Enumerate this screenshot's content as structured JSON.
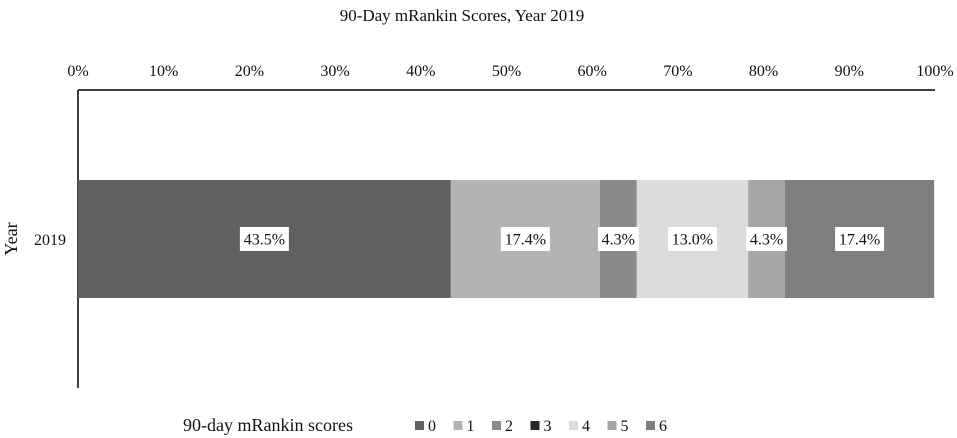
{
  "chart_data": {
    "type": "bar",
    "orientation": "horizontal",
    "stacked": "percent",
    "title": "90-Day mRankin Scores, Year 2019",
    "xlabel": "",
    "ylabel": "Year",
    "xlim": [
      0,
      100
    ],
    "x_ticks": [
      "0%",
      "10%",
      "20%",
      "30%",
      "40%",
      "50%",
      "60%",
      "70%",
      "80%",
      "90%",
      "100%"
    ],
    "x_axis_position": "top",
    "categories": [
      "2019"
    ],
    "grid": false,
    "legend_position": "bottom",
    "legend_title": "90-day mRankin scores",
    "series": [
      {
        "name": "0",
        "values": [
          43.5
        ],
        "label": "43.5%",
        "color": "#606060"
      },
      {
        "name": "1",
        "values": [
          17.4
        ],
        "label": "17.4%",
        "color": "#b3b3b3"
      },
      {
        "name": "2",
        "values": [
          4.3
        ],
        "label": "4.3%",
        "color": "#8a8a8a"
      },
      {
        "name": "3",
        "values": [
          0
        ],
        "label": "",
        "color": "#262626"
      },
      {
        "name": "4",
        "values": [
          13.0
        ],
        "label": "13.0%",
        "color": "#dcdcdc"
      },
      {
        "name": "5",
        "values": [
          4.3
        ],
        "label": "4.3%",
        "color": "#a6a6a6"
      },
      {
        "name": "6",
        "values": [
          17.4
        ],
        "label": "17.4%",
        "color": "#7f7f7f"
      }
    ]
  }
}
